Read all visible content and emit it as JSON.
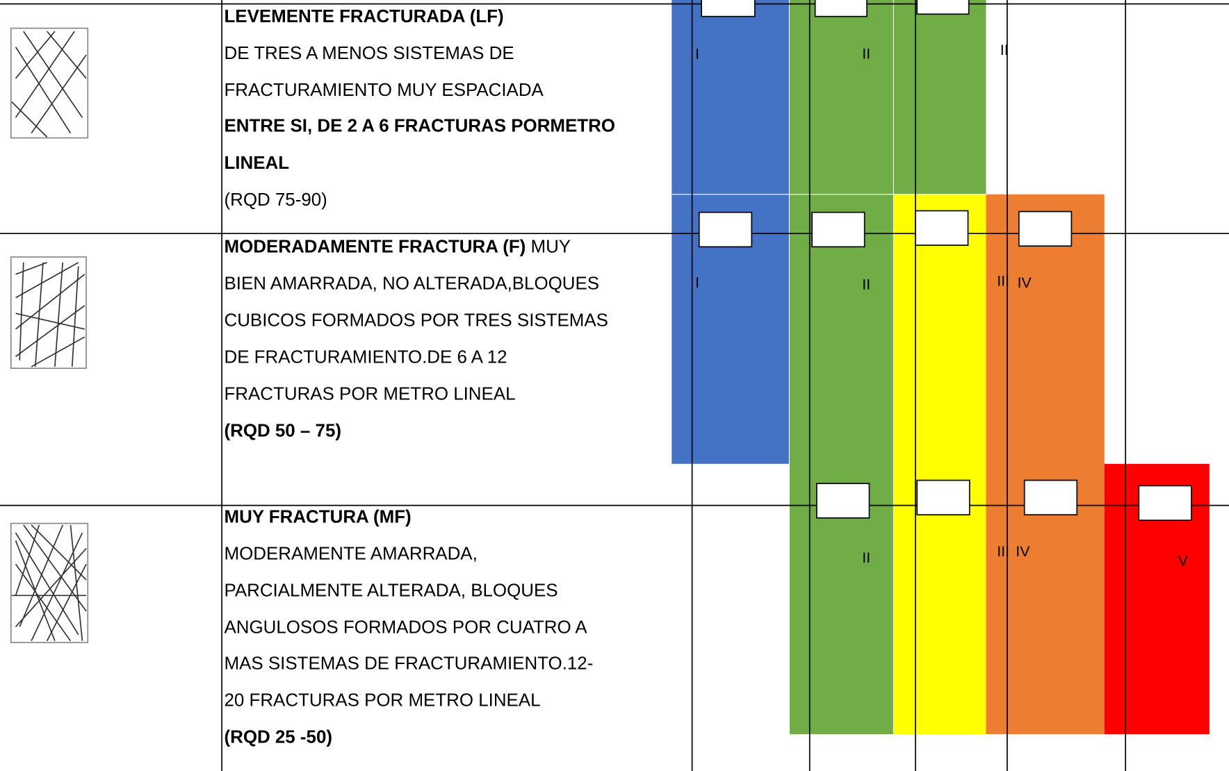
{
  "table": {
    "rows": [
      {
        "lines": [
          [
            {
              "text": "LEVEMENTE  FRACTURADA (LF)",
              "bold": true
            }
          ],
          [
            {
              "text": "DE TRES A MENOS SISTEMAS DE",
              "bold": false
            }
          ],
          [
            {
              "text": "FRACTURAMIENTO MUY ESPACIADA",
              "bold": false
            }
          ],
          [
            {
              "text": "ENTRE SI, DE 2 A 6 FRACTURAS PORMETRO",
              "bold": true
            }
          ],
          [
            {
              "text": "LINEAL",
              "bold": true
            }
          ],
          [
            {
              "text": "(RQD 75-90)",
              "bold": false
            }
          ]
        ],
        "labels": [
          "I",
          "II",
          "II"
        ]
      },
      {
        "lines": [
          [
            {
              "text": "MODERADAMENTE FRACTURA (F)",
              "bold": true
            },
            {
              "text": " MUY",
              "bold": false
            }
          ],
          [
            {
              "text": "BIEN AMARRADA, NO ALTERADA,BLOQUES",
              "bold": false
            }
          ],
          [
            {
              "text": "CUBICOS FORMADOS POR TRES SISTEMAS",
              "bold": false
            }
          ],
          [
            {
              "text": "DE FRACTURAMIENTO.DE 6 A 12",
              "bold": false
            }
          ],
          [
            {
              "text": "FRACTURAS POR METRO LINEAL",
              "bold": false
            }
          ],
          [
            {
              "text": "(RQD 50 – 75)",
              "bold": true
            }
          ]
        ],
        "labels": [
          "I",
          "II",
          "III",
          "IV"
        ]
      },
      {
        "lines": [
          [
            {
              "text": "MUY  FRACTURA (MF)",
              "bold": true
            }
          ],
          [
            {
              "text": "MODERAMENTE AMARRADA,",
              "bold": false
            }
          ],
          [
            {
              "text": "PARCIALMENTE ALTERADA, BLOQUES",
              "bold": false
            }
          ],
          [
            {
              "text": "ANGULOSOS FORMADOS POR CUATRO A",
              "bold": false
            }
          ],
          [
            {
              "text": "MAS SISTEMAS DE FRACTURAMIENTO.12-",
              "bold": false
            }
          ],
          [
            {
              "text": "20 FRACTURAS POR METRO LINEAL",
              "bold": false
            }
          ],
          [
            {
              "text": "(RQD 25 -50)",
              "bold": true
            }
          ]
        ],
        "labels": [
          "II",
          "III",
          "IV",
          "V"
        ]
      }
    ]
  }
}
